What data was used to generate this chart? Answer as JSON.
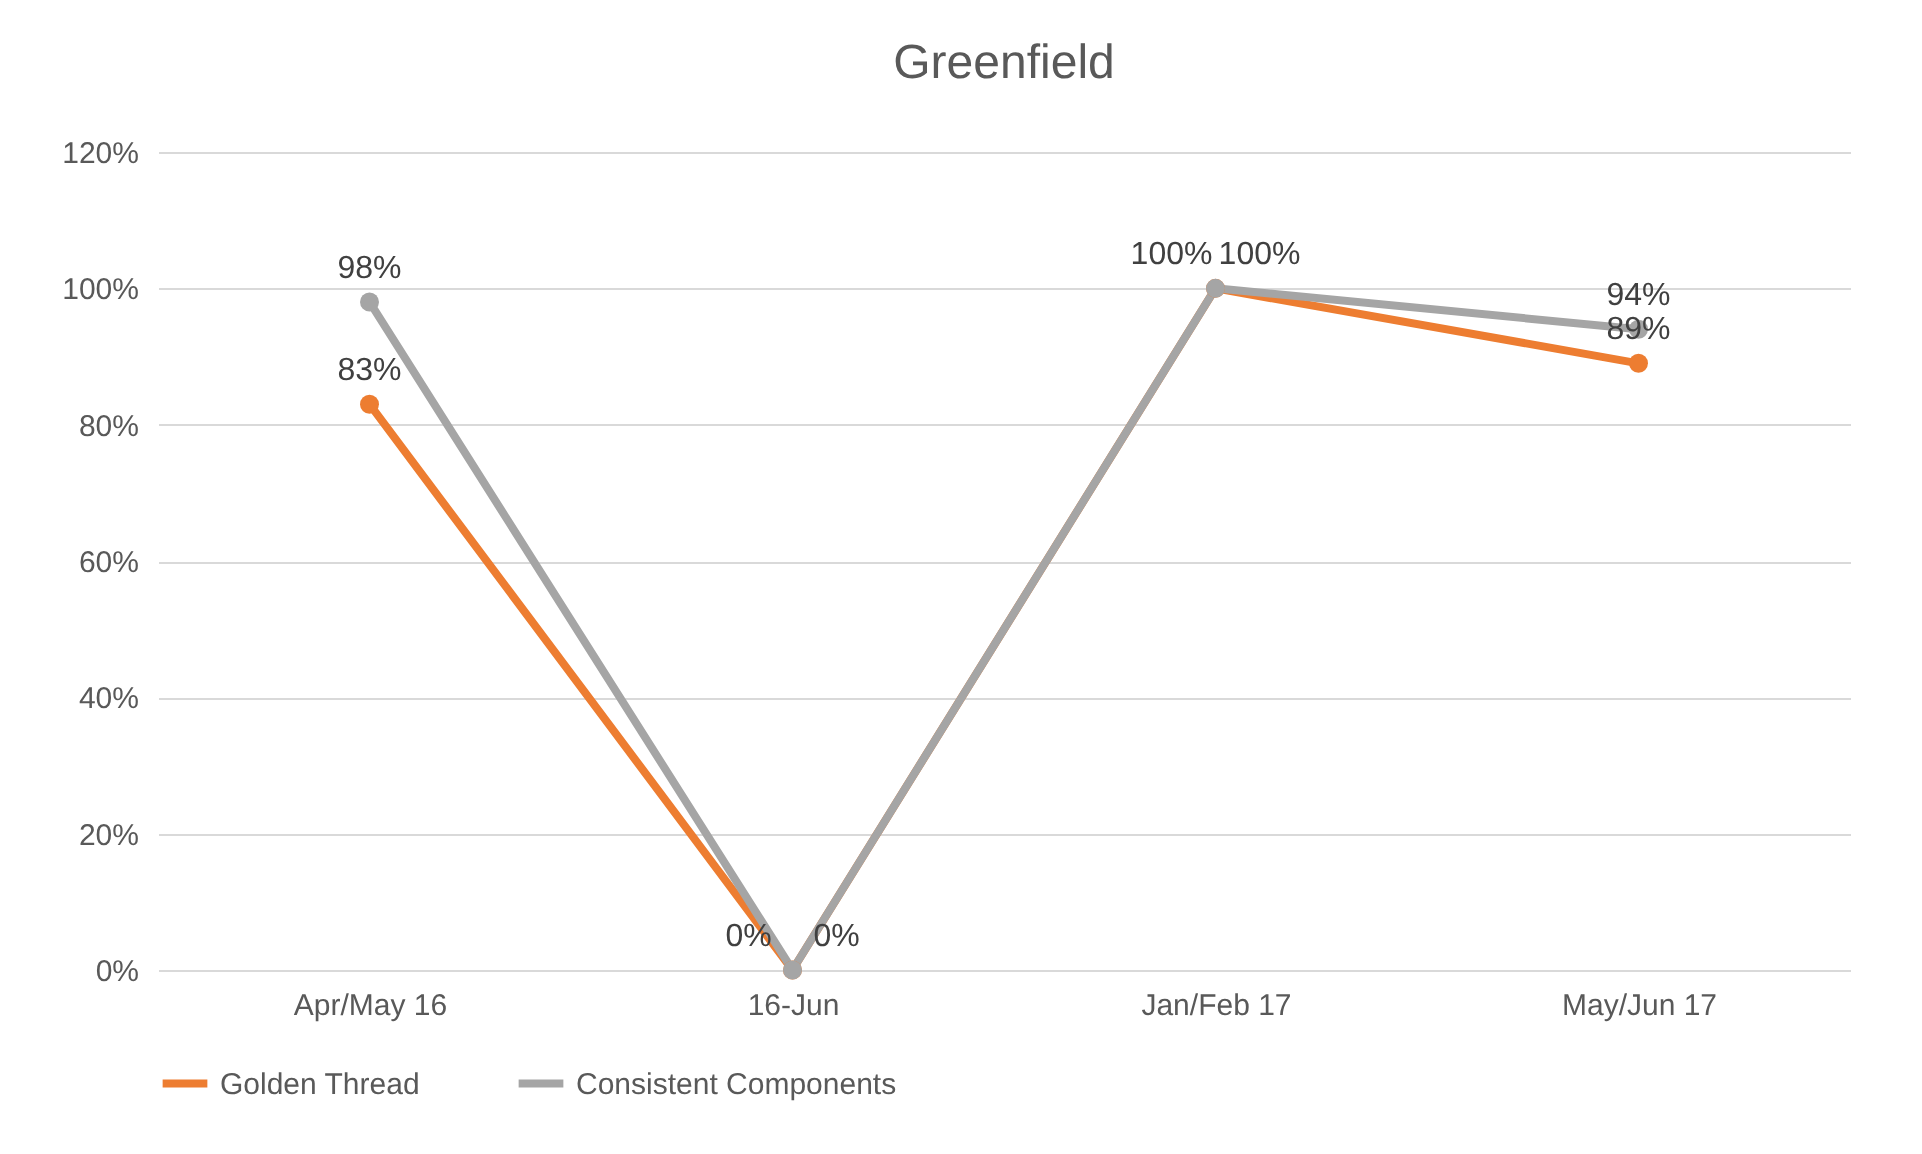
{
  "chart_data": {
    "type": "line",
    "title": "Greenfield",
    "categories": [
      "Apr/May 16",
      "16-Jun",
      "Jan/Feb 17",
      "May/Jun 17"
    ],
    "series": [
      {
        "name": "Golden Thread",
        "color": "#ed7d31",
        "values": [
          83,
          0,
          100,
          89
        ],
        "value_labels": [
          "83%",
          "0%",
          "100%",
          "89%"
        ]
      },
      {
        "name": "Consistent Components",
        "color": "#a5a5a5",
        "values": [
          98,
          0,
          100,
          94
        ],
        "value_labels": [
          "98%",
          "0%",
          "100%",
          "94%"
        ]
      }
    ],
    "ylim": [
      0,
      120
    ],
    "yticks": [
      {
        "value": 0,
        "label": "0%"
      },
      {
        "value": 20,
        "label": "20%"
      },
      {
        "value": 40,
        "label": "40%"
      },
      {
        "value": 60,
        "label": "60%"
      },
      {
        "value": 80,
        "label": "80%"
      },
      {
        "value": 100,
        "label": "100%"
      },
      {
        "value": 120,
        "label": "120%"
      }
    ],
    "grid": "y",
    "legend": "bottom",
    "marker": "circle",
    "line_style": "solid"
  }
}
